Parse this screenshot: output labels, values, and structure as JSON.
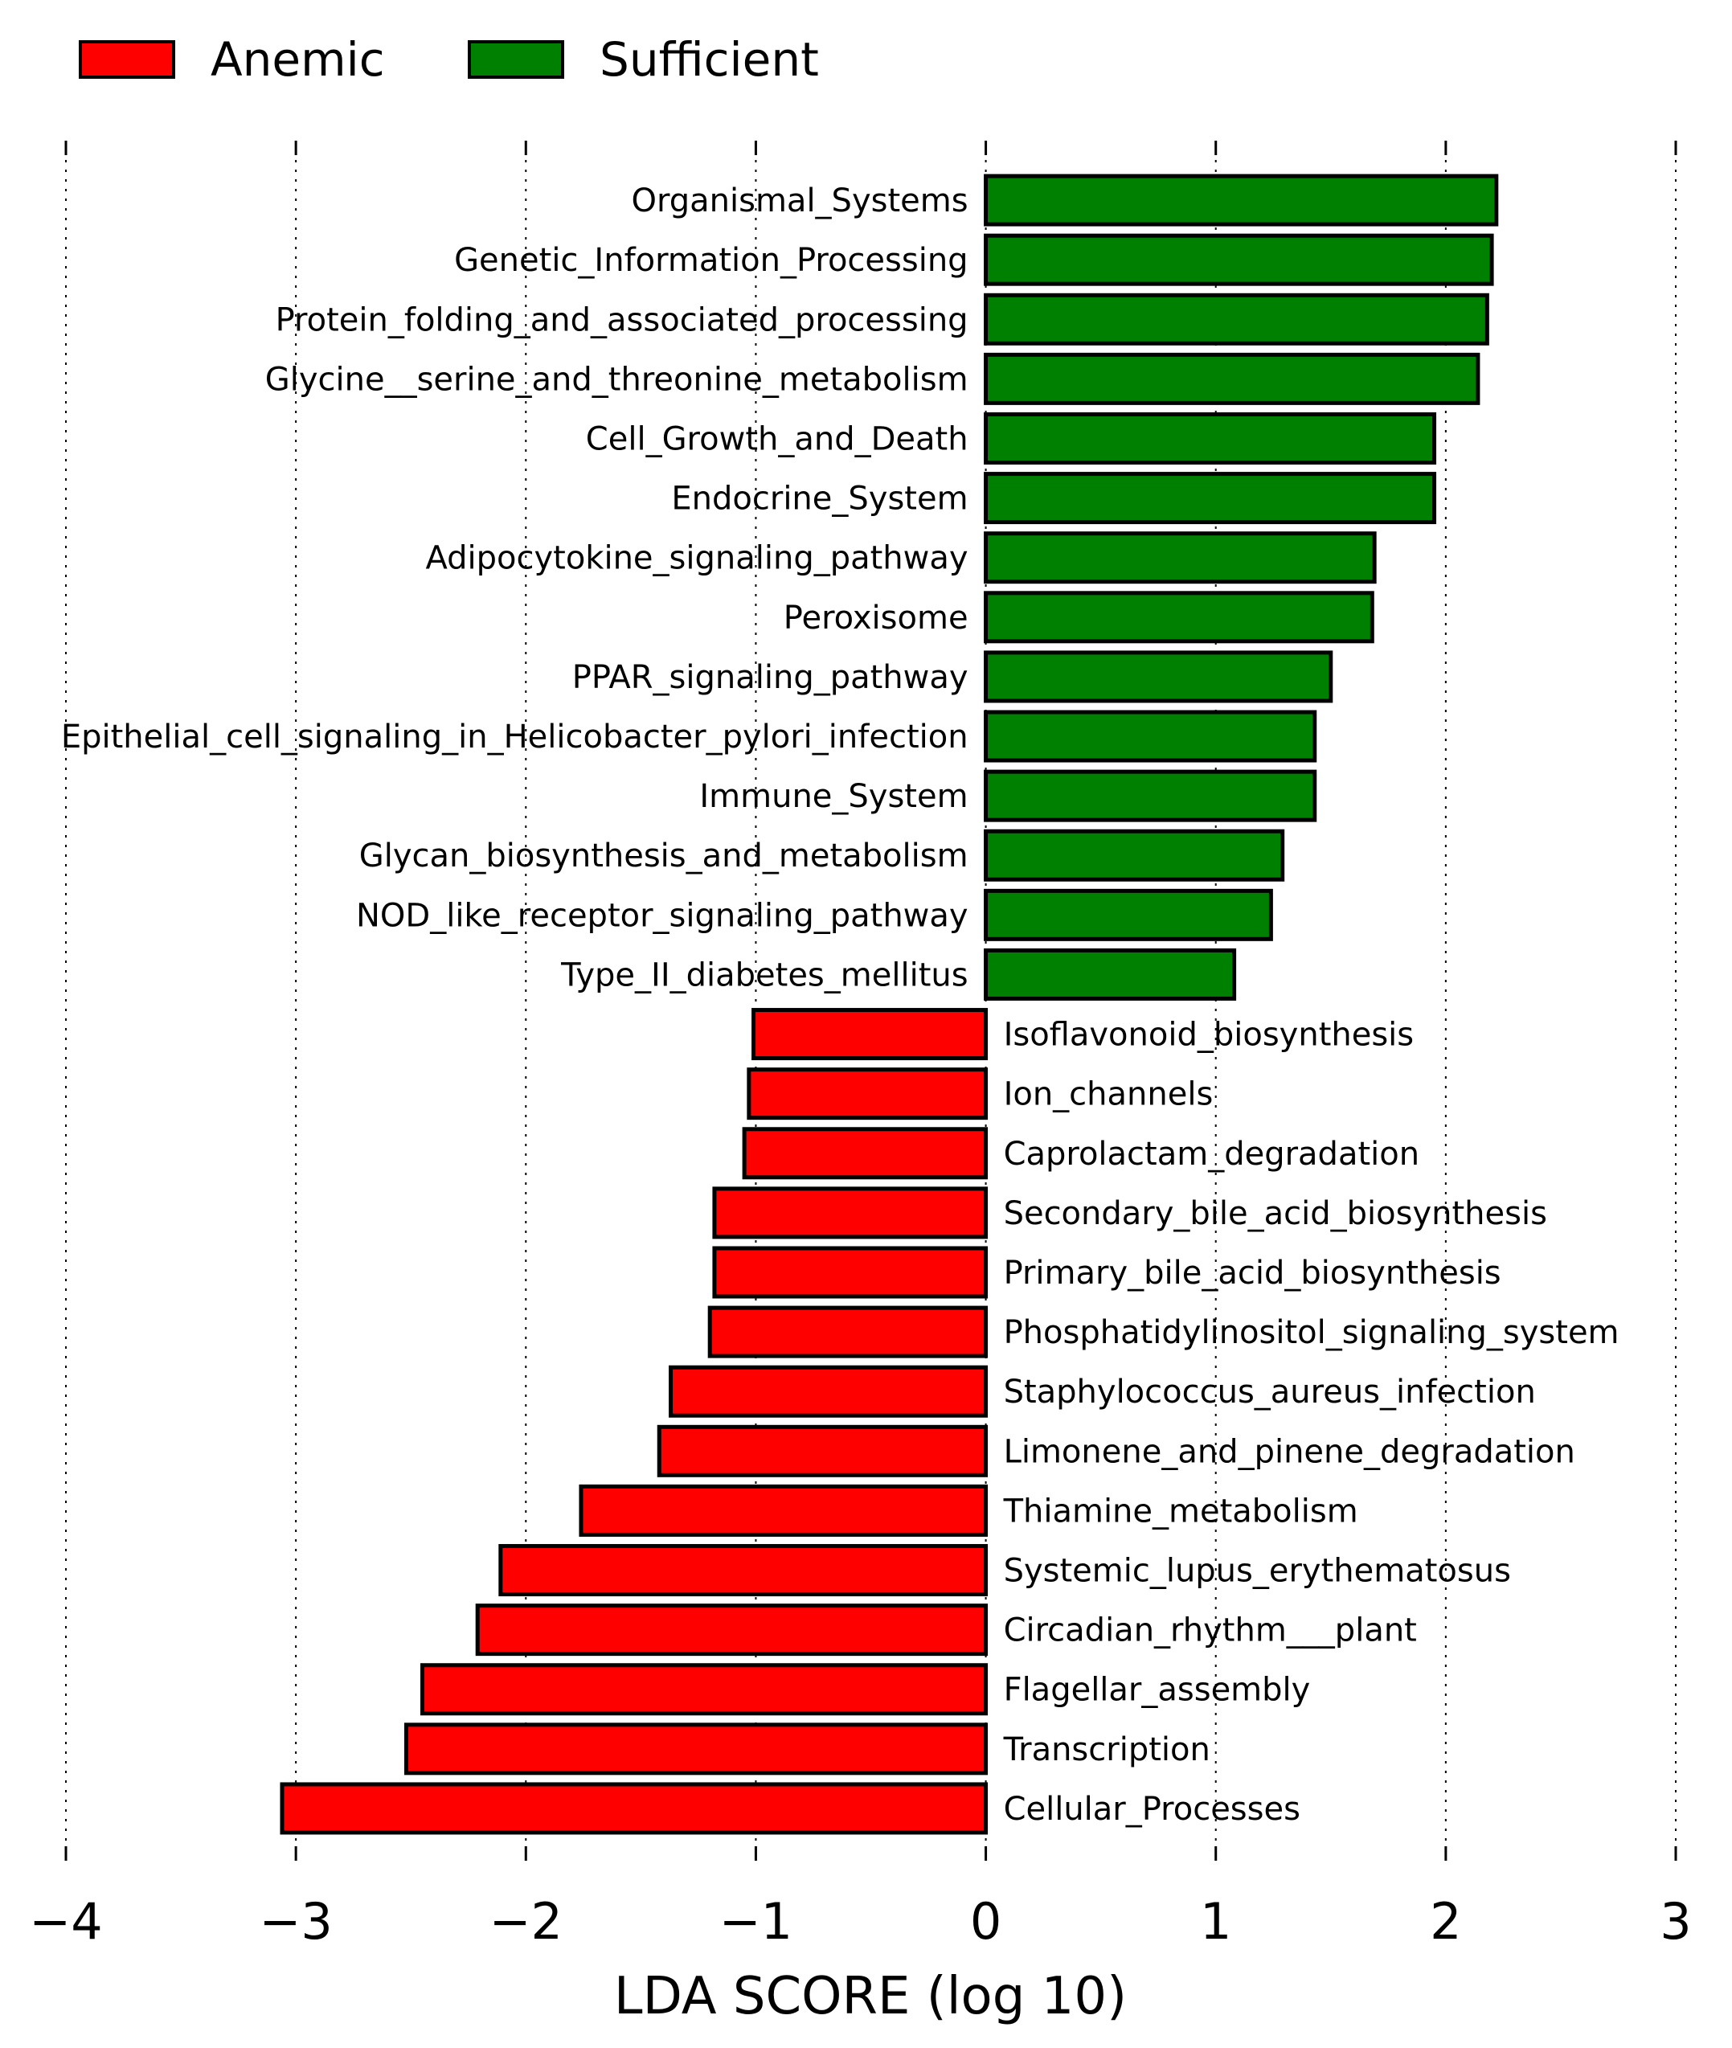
{
  "chart_data": {
    "type": "bar",
    "orientation": "horizontal",
    "xlabel": "LDA SCORE (log 10)",
    "xlim": [
      -4,
      3
    ],
    "xticks": [
      "−4",
      "−3",
      "−2",
      "−1",
      "0",
      "1",
      "2",
      "3"
    ],
    "grid": "vertical dotted",
    "legend": {
      "position": "top-left",
      "entries": [
        {
          "name": "Anemic",
          "color": "#ff0000"
        },
        {
          "name": "Sufficient",
          "color": "#008000"
        }
      ]
    },
    "bars": [
      {
        "label": "Organismal_Systems",
        "value": 2.22,
        "group": "Sufficient"
      },
      {
        "label": "Genetic_Information_Processing",
        "value": 2.2,
        "group": "Sufficient"
      },
      {
        "label": "Protein_folding_and_associated_processing",
        "value": 2.18,
        "group": "Sufficient"
      },
      {
        "label": "Glycine__serine_and_threonine_metabolism",
        "value": 2.14,
        "group": "Sufficient"
      },
      {
        "label": "Cell_Growth_and_Death",
        "value": 1.95,
        "group": "Sufficient"
      },
      {
        "label": "Endocrine_System",
        "value": 1.95,
        "group": "Sufficient"
      },
      {
        "label": "Adipocytokine_signaling_pathway",
        "value": 1.69,
        "group": "Sufficient"
      },
      {
        "label": "Peroxisome",
        "value": 1.68,
        "group": "Sufficient"
      },
      {
        "label": "PPAR_signaling_pathway",
        "value": 1.5,
        "group": "Sufficient"
      },
      {
        "label": "Epithelial_cell_signaling_in_Helicobacter_pylori_infection",
        "value": 1.43,
        "group": "Sufficient"
      },
      {
        "label": "Immune_System",
        "value": 1.43,
        "group": "Sufficient"
      },
      {
        "label": "Glycan_biosynthesis_and_metabolism",
        "value": 1.29,
        "group": "Sufficient"
      },
      {
        "label": "NOD_like_receptor_signaling_pathway",
        "value": 1.24,
        "group": "Sufficient"
      },
      {
        "label": "Type_II_diabetes_mellitus",
        "value": 1.08,
        "group": "Sufficient"
      },
      {
        "label": "Isoflavonoid_biosynthesis",
        "value": -1.01,
        "group": "Anemic"
      },
      {
        "label": "Ion_channels",
        "value": -1.03,
        "group": "Anemic"
      },
      {
        "label": "Caprolactam_degradation",
        "value": -1.05,
        "group": "Anemic"
      },
      {
        "label": "Secondary_bile_acid_biosynthesis",
        "value": -1.18,
        "group": "Anemic"
      },
      {
        "label": "Primary_bile_acid_biosynthesis",
        "value": -1.18,
        "group": "Anemic"
      },
      {
        "label": "Phosphatidylinositol_signaling_system",
        "value": -1.2,
        "group": "Anemic"
      },
      {
        "label": "Staphylococcus_aureus_infection",
        "value": -1.37,
        "group": "Anemic"
      },
      {
        "label": "Limonene_and_pinene_degradation",
        "value": -1.42,
        "group": "Anemic"
      },
      {
        "label": "Thiamine_metabolism",
        "value": -1.76,
        "group": "Anemic"
      },
      {
        "label": "Systemic_lupus_erythematosus",
        "value": -2.11,
        "group": "Anemic"
      },
      {
        "label": "Circadian_rhythm___plant",
        "value": -2.21,
        "group": "Anemic"
      },
      {
        "label": "Flagellar_assembly",
        "value": -2.45,
        "group": "Anemic"
      },
      {
        "label": "Transcription",
        "value": -2.52,
        "group": "Anemic"
      },
      {
        "label": "Cellular_Processes",
        "value": -3.06,
        "group": "Anemic"
      }
    ]
  }
}
